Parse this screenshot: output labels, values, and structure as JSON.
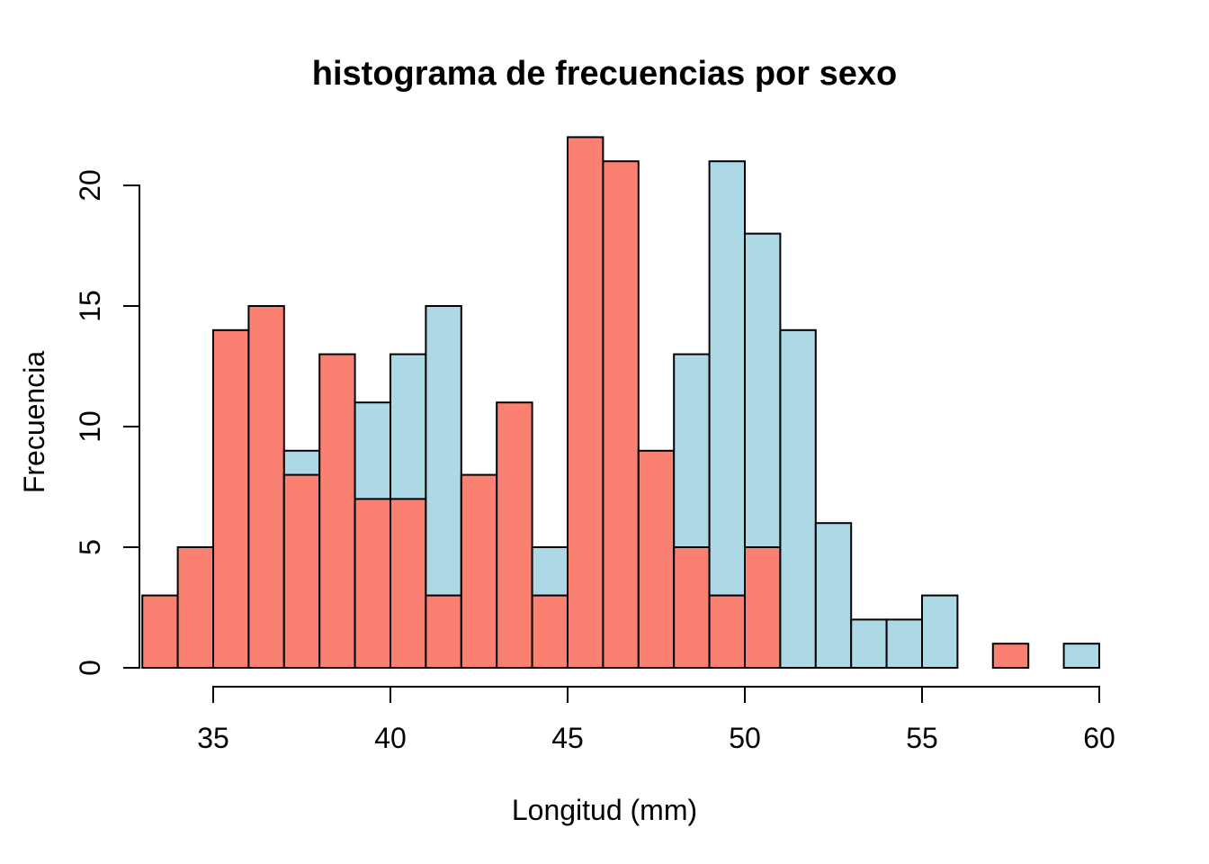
{
  "figure": {
    "background": "#ffffff"
  },
  "chart_data": {
    "type": "histogram",
    "title": "histograma de frecuencias por sexo",
    "xlabel": "Longitud (mm)",
    "ylabel": "Frecuencia",
    "x_ticks": [
      35,
      40,
      45,
      50,
      55,
      60
    ],
    "y_ticks": [
      0,
      5,
      10,
      15,
      20
    ],
    "xlim": [
      33,
      60
    ],
    "ylim": [
      0,
      22
    ],
    "bin_width_mm": 1,
    "bins_start_mm": [
      33,
      34,
      35,
      36,
      37,
      38,
      39,
      40,
      41,
      42,
      43,
      44,
      45,
      46,
      47,
      48,
      49,
      50,
      51,
      52,
      53,
      54,
      55,
      56,
      57,
      58,
      59
    ],
    "series": [
      {
        "name": "lightblue-series",
        "layer": "back",
        "color": "#ADD8E6",
        "counts": [
          0,
          0,
          0,
          0,
          9,
          0,
          11,
          13,
          15,
          0,
          0,
          5,
          0,
          0,
          0,
          13,
          21,
          18,
          14,
          6,
          2,
          2,
          3,
          0,
          0,
          0,
          1
        ]
      },
      {
        "name": "salmon-series",
        "layer": "front",
        "color": "#FA8072",
        "counts": [
          3,
          5,
          14,
          15,
          8,
          13,
          7,
          7,
          3,
          8,
          11,
          3,
          22,
          21,
          9,
          5,
          3,
          5,
          0,
          0,
          0,
          0,
          0,
          0,
          1,
          0,
          0
        ]
      }
    ],
    "bar_border_color": "#000000",
    "axis_color": "#000000",
    "grid": false,
    "legend": null
  }
}
